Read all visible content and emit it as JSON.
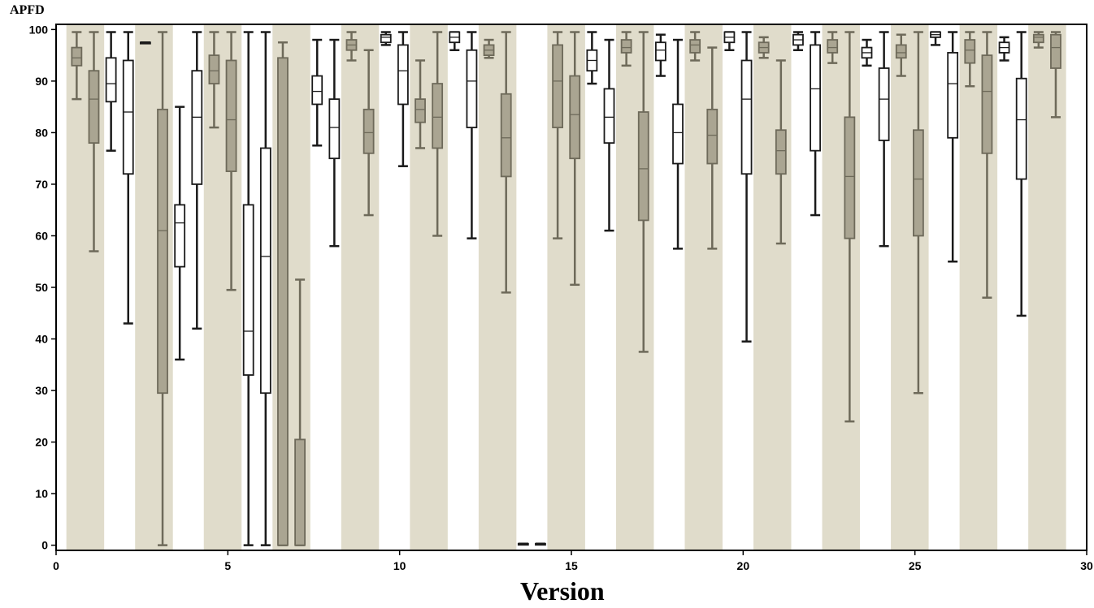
{
  "chart_data": {
    "type": "box",
    "ylabel": "APFD",
    "xlabel": "Version",
    "xlim": [
      0,
      30
    ],
    "ylim": [
      -1,
      101
    ],
    "xticks": [
      0,
      5,
      10,
      15,
      20,
      25,
      30
    ],
    "yticks": [
      0,
      10,
      20,
      30,
      40,
      50,
      60,
      70,
      80,
      90,
      100
    ],
    "band_color": "#e0dccb",
    "shaded_box_color": "#aaa592",
    "shaded_whisker_color": "#6e6a5a",
    "open_box_color": "#ffffff",
    "open_whisker_color": "#1a1a1a",
    "bands": [
      [
        0.3,
        1.4
      ],
      [
        2.3,
        3.4
      ],
      [
        4.3,
        5.4
      ],
      [
        6.3,
        7.4
      ],
      [
        8.3,
        9.4
      ],
      [
        10.3,
        11.4
      ],
      [
        12.3,
        13.4
      ],
      [
        14.3,
        15.4
      ],
      [
        16.3,
        17.4
      ],
      [
        18.3,
        19.4
      ],
      [
        20.3,
        21.4
      ],
      [
        22.3,
        23.4
      ],
      [
        24.3,
        25.4
      ],
      [
        26.3,
        27.4
      ],
      [
        28.3,
        29.4
      ]
    ],
    "boxes": [
      {
        "x": 0.6,
        "shaded": true,
        "min": 86.5,
        "q1": 93,
        "median": 94.5,
        "q3": 96.5,
        "max": 99.5
      },
      {
        "x": 1.1,
        "shaded": true,
        "min": 57,
        "q1": 78,
        "median": 86.5,
        "q3": 92,
        "max": 99.5
      },
      {
        "x": 1.6,
        "shaded": false,
        "min": 76.5,
        "q1": 86,
        "median": 89.5,
        "q3": 94.5,
        "max": 99.5
      },
      {
        "x": 2.1,
        "shaded": false,
        "min": 43,
        "q1": 72,
        "median": 84,
        "q3": 94,
        "max": 99.5
      },
      {
        "x": 2.6,
        "shaded": false,
        "min": 97.5,
        "q1": 97.5,
        "median": 97.5,
        "q3": 97.5,
        "max": 97.5
      },
      {
        "x": 3.1,
        "shaded": true,
        "min": 0,
        "q1": 29.5,
        "median": 61,
        "q3": 84.5,
        "max": 99.5
      },
      {
        "x": 3.6,
        "shaded": false,
        "min": 36,
        "q1": 54,
        "median": 62.5,
        "q3": 66,
        "max": 85
      },
      {
        "x": 4.1,
        "shaded": false,
        "min": 42,
        "q1": 70,
        "median": 83,
        "q3": 92,
        "max": 99.5
      },
      {
        "x": 4.6,
        "shaded": true,
        "min": 81,
        "q1": 89.5,
        "median": 92,
        "q3": 95,
        "max": 99.5
      },
      {
        "x": 5.1,
        "shaded": true,
        "min": 49.5,
        "q1": 72.5,
        "median": 82.5,
        "q3": 94,
        "max": 99.5
      },
      {
        "x": 5.6,
        "shaded": false,
        "min": 0,
        "q1": 33,
        "median": 41.5,
        "q3": 66,
        "max": 99.5
      },
      {
        "x": 6.1,
        "shaded": false,
        "min": 0,
        "q1": 29.5,
        "median": 56,
        "q3": 77,
        "max": 99.5
      },
      {
        "x": 6.6,
        "shaded": true,
        "min": 0,
        "q1": 0,
        "median": 0,
        "q3": 94.5,
        "max": 97.5
      },
      {
        "x": 7.1,
        "shaded": true,
        "min": 0,
        "q1": 0,
        "median": 0,
        "q3": 20.5,
        "max": 51.5
      },
      {
        "x": 7.6,
        "shaded": false,
        "min": 77.5,
        "q1": 85.5,
        "median": 88,
        "q3": 91,
        "max": 98
      },
      {
        "x": 8.1,
        "shaded": false,
        "min": 58,
        "q1": 75,
        "median": 81,
        "q3": 86.5,
        "max": 98
      },
      {
        "x": 8.6,
        "shaded": true,
        "min": 94,
        "q1": 96,
        "median": 97,
        "q3": 98,
        "max": 99.5
      },
      {
        "x": 9.1,
        "shaded": true,
        "min": 64,
        "q1": 76,
        "median": 80,
        "q3": 84.5,
        "max": 96
      },
      {
        "x": 9.6,
        "shaded": false,
        "min": 97,
        "q1": 97.5,
        "median": 98.5,
        "q3": 99,
        "max": 99.5
      },
      {
        "x": 10.1,
        "shaded": false,
        "min": 73.5,
        "q1": 85.5,
        "median": 92,
        "q3": 97,
        "max": 99.5
      },
      {
        "x": 10.6,
        "shaded": true,
        "min": 77,
        "q1": 82,
        "median": 84.5,
        "q3": 86.5,
        "max": 94
      },
      {
        "x": 11.1,
        "shaded": true,
        "min": 60,
        "q1": 77,
        "median": 83,
        "q3": 89.5,
        "max": 99.5
      },
      {
        "x": 11.6,
        "shaded": false,
        "min": 96,
        "q1": 97.5,
        "median": 98.5,
        "q3": 99.5,
        "max": 99.5
      },
      {
        "x": 12.1,
        "shaded": false,
        "min": 59.5,
        "q1": 81,
        "median": 90,
        "q3": 96,
        "max": 99.5
      },
      {
        "x": 12.6,
        "shaded": true,
        "min": 94.5,
        "q1": 95,
        "median": 96,
        "q3": 97,
        "max": 98
      },
      {
        "x": 13.1,
        "shaded": true,
        "min": 49,
        "q1": 71.5,
        "median": 79,
        "q3": 87.5,
        "max": 99.5
      },
      {
        "x": 13.6,
        "shaded": false,
        "min": 0.3,
        "q1": 0.3,
        "median": 0.3,
        "q3": 0.3,
        "max": 0.3
      },
      {
        "x": 14.1,
        "shaded": false,
        "min": 0.3,
        "q1": 0.3,
        "median": 0.3,
        "q3": 0.3,
        "max": 0.3
      },
      {
        "x": 14.6,
        "shaded": true,
        "min": 59.5,
        "q1": 81,
        "median": 90,
        "q3": 97,
        "max": 99.5
      },
      {
        "x": 15.1,
        "shaded": true,
        "min": 50.5,
        "q1": 75,
        "median": 83.5,
        "q3": 91,
        "max": 99.5
      },
      {
        "x": 15.6,
        "shaded": false,
        "min": 89.5,
        "q1": 92,
        "median": 94,
        "q3": 96,
        "max": 99.5
      },
      {
        "x": 16.1,
        "shaded": false,
        "min": 61,
        "q1": 78,
        "median": 83,
        "q3": 88.5,
        "max": 98
      },
      {
        "x": 16.6,
        "shaded": true,
        "min": 93,
        "q1": 95.5,
        "median": 96.5,
        "q3": 98,
        "max": 99.5
      },
      {
        "x": 17.1,
        "shaded": true,
        "min": 37.5,
        "q1": 63,
        "median": 73,
        "q3": 84,
        "max": 99.5
      },
      {
        "x": 17.6,
        "shaded": false,
        "min": 91,
        "q1": 94,
        "median": 96,
        "q3": 97.5,
        "max": 99
      },
      {
        "x": 18.1,
        "shaded": false,
        "min": 57.5,
        "q1": 74,
        "median": 80,
        "q3": 85.5,
        "max": 98
      },
      {
        "x": 18.6,
        "shaded": true,
        "min": 94,
        "q1": 95.5,
        "median": 97,
        "q3": 98,
        "max": 99.5
      },
      {
        "x": 19.1,
        "shaded": true,
        "min": 57.5,
        "q1": 74,
        "median": 79.5,
        "q3": 84.5,
        "max": 96.5
      },
      {
        "x": 19.6,
        "shaded": false,
        "min": 96,
        "q1": 97.5,
        "median": 98.5,
        "q3": 99.5,
        "max": 99.5
      },
      {
        "x": 20.1,
        "shaded": false,
        "min": 39.5,
        "q1": 72,
        "median": 86.5,
        "q3": 94,
        "max": 99.5
      },
      {
        "x": 20.6,
        "shaded": true,
        "min": 94.5,
        "q1": 95.5,
        "median": 96.5,
        "q3": 97.5,
        "max": 98.5
      },
      {
        "x": 21.1,
        "shaded": true,
        "min": 58.5,
        "q1": 72,
        "median": 76.5,
        "q3": 80.5,
        "max": 94
      },
      {
        "x": 21.6,
        "shaded": false,
        "min": 96,
        "q1": 97,
        "median": 98,
        "q3": 99,
        "max": 99.5
      },
      {
        "x": 22.1,
        "shaded": false,
        "min": 64,
        "q1": 76.5,
        "median": 88.5,
        "q3": 97,
        "max": 99.5
      },
      {
        "x": 22.6,
        "shaded": true,
        "min": 93.5,
        "q1": 95.5,
        "median": 96.5,
        "q3": 98,
        "max": 99.5
      },
      {
        "x": 23.1,
        "shaded": true,
        "min": 24,
        "q1": 59.5,
        "median": 71.5,
        "q3": 83,
        "max": 99.5
      },
      {
        "x": 23.6,
        "shaded": false,
        "min": 93,
        "q1": 94.5,
        "median": 95.5,
        "q3": 96.5,
        "max": 98
      },
      {
        "x": 24.1,
        "shaded": false,
        "min": 58,
        "q1": 78.5,
        "median": 86.5,
        "q3": 92.5,
        "max": 99.5
      },
      {
        "x": 24.6,
        "shaded": true,
        "min": 91,
        "q1": 94.5,
        "median": 95.5,
        "q3": 97,
        "max": 99
      },
      {
        "x": 25.1,
        "shaded": true,
        "min": 29.5,
        "q1": 60,
        "median": 71,
        "q3": 80.5,
        "max": 99.5
      },
      {
        "x": 25.6,
        "shaded": false,
        "min": 97,
        "q1": 98.5,
        "median": 99,
        "q3": 99.5,
        "max": 99.5
      },
      {
        "x": 26.1,
        "shaded": false,
        "min": 55,
        "q1": 79,
        "median": 89.5,
        "q3": 95.5,
        "max": 99.5
      },
      {
        "x": 26.6,
        "shaded": true,
        "min": 89,
        "q1": 93.5,
        "median": 96,
        "q3": 98,
        "max": 99.5
      },
      {
        "x": 27.1,
        "shaded": true,
        "min": 48,
        "q1": 76,
        "median": 88,
        "q3": 95,
        "max": 99.5
      },
      {
        "x": 27.6,
        "shaded": false,
        "min": 94,
        "q1": 95.5,
        "median": 96.5,
        "q3": 97.5,
        "max": 98.5
      },
      {
        "x": 28.1,
        "shaded": false,
        "min": 44.5,
        "q1": 71,
        "median": 82.5,
        "q3": 90.5,
        "max": 99.5
      },
      {
        "x": 28.6,
        "shaded": true,
        "min": 96.5,
        "q1": 97.5,
        "median": 98.5,
        "q3": 99,
        "max": 99.5
      },
      {
        "x": 29.1,
        "shaded": true,
        "min": 83,
        "q1": 92.5,
        "median": 96.5,
        "q3": 99,
        "max": 99.5
      }
    ]
  }
}
